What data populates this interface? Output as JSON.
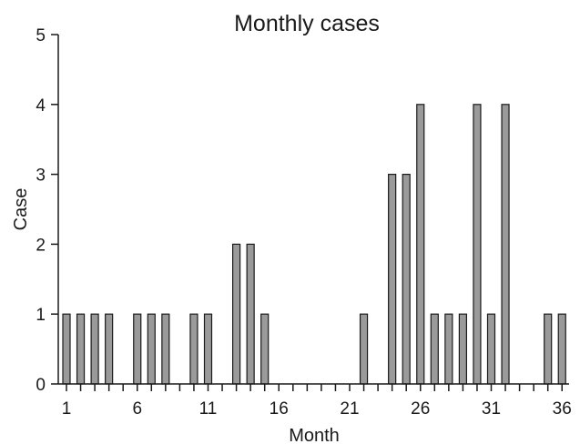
{
  "chart_data": {
    "type": "bar",
    "title": "Monthly cases",
    "xlabel": "Month",
    "ylabel": "Case",
    "x_range": [
      1,
      36
    ],
    "x_tick_labels": [
      "1",
      "6",
      "11",
      "16",
      "21",
      "26",
      "31",
      "36"
    ],
    "ylim": [
      0,
      5
    ],
    "y_tick_labels": [
      "0",
      "1",
      "2",
      "3",
      "4",
      "5"
    ],
    "grid": false,
    "bar_color": "#9a9a9a",
    "edge_color": "#1a1a1a",
    "series": [
      {
        "x": [
          1,
          2,
          3,
          4,
          6,
          7,
          8,
          10,
          11,
          13,
          14,
          15,
          22,
          24,
          25,
          26,
          27,
          28,
          29,
          30,
          31,
          32,
          35,
          36
        ],
        "values": [
          1,
          1,
          1,
          1,
          1,
          1,
          1,
          1,
          1,
          2,
          2,
          1,
          1,
          3,
          3,
          4,
          1,
          1,
          1,
          4,
          1,
          4,
          1,
          1
        ]
      }
    ]
  }
}
